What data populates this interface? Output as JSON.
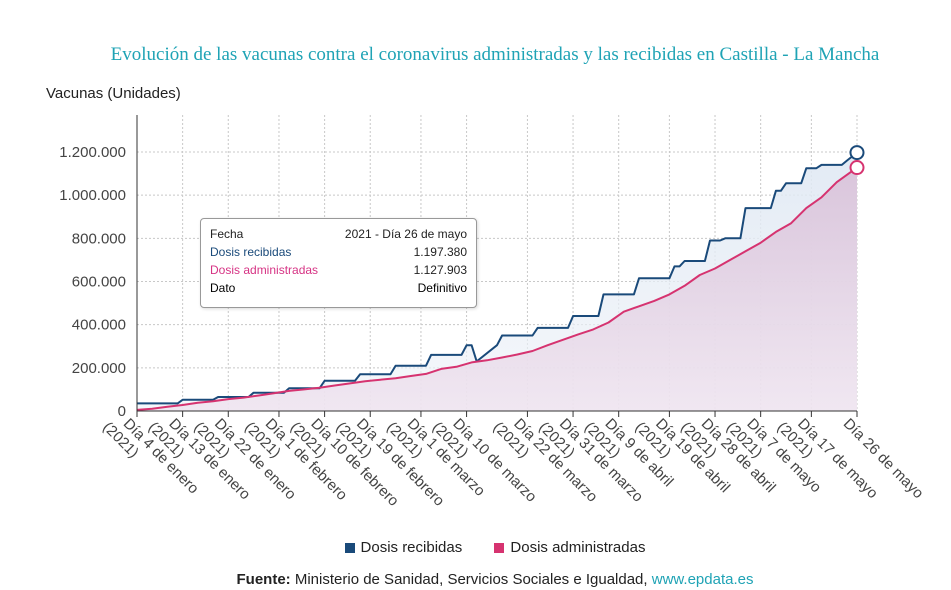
{
  "chart_data": {
    "type": "line",
    "title": "Evolución de las vacunas contra el coronavirus administradas y las recibidas en Castilla - La Mancha",
    "ylabel": "Vacunas (Unidades)",
    "xlabel": "",
    "ylim": [
      0,
      1300000
    ],
    "yticks": [
      {
        "value": 0,
        "label": "0"
      },
      {
        "value": 200000,
        "label": "200.000"
      },
      {
        "value": 400000,
        "label": "400.000"
      },
      {
        "value": 600000,
        "label": "600.000"
      },
      {
        "value": 800000,
        "label": "800.000"
      },
      {
        "value": 1000000,
        "label": "1.000.000"
      },
      {
        "value": 1200000,
        "label": "1.200.000"
      }
    ],
    "xrange": [
      0,
      142
    ],
    "xticks": [
      {
        "day": 0,
        "label": "Día 4 de enero",
        "sub": "(2021)"
      },
      {
        "day": 9,
        "label": "Día 13 de enero",
        "sub": "(2021)"
      },
      {
        "day": 18,
        "label": "Día 22 de enero",
        "sub": "(2021)"
      },
      {
        "day": 28,
        "label": "Día 1 de febrero",
        "sub": "(2021)"
      },
      {
        "day": 37,
        "label": "Día 10 de febrero",
        "sub": "(2021)"
      },
      {
        "day": 46,
        "label": "Día 19 de febrero",
        "sub": "(2021)"
      },
      {
        "day": 56,
        "label": "Día 1 de marzo",
        "sub": "(2021)"
      },
      {
        "day": 65,
        "label": "Día 10 de marzo",
        "sub": "(2021)"
      },
      {
        "day": 77,
        "label": "Día 22 de marzo",
        "sub": "(2021)"
      },
      {
        "day": 86,
        "label": "Día 31 de marzo",
        "sub": "(2021)"
      },
      {
        "day": 95,
        "label": "Día 9 de abril",
        "sub": "(2021)"
      },
      {
        "day": 105,
        "label": "Día 19 de abril",
        "sub": "(2021)"
      },
      {
        "day": 114,
        "label": "Día 28 de abril",
        "sub": "(2021)"
      },
      {
        "day": 123,
        "label": "Día 7 de mayo",
        "sub": "(2021)"
      },
      {
        "day": 133,
        "label": "Día 17 de mayo",
        "sub": "(2021)"
      },
      {
        "day": 142,
        "label": "Día 26 de mayo",
        "sub": ""
      }
    ],
    "series": [
      {
        "name": "Dosis recibidas",
        "color": "#1a4a7a",
        "step": true,
        "points": [
          [
            0,
            35000
          ],
          [
            8,
            35000
          ],
          [
            9,
            52000
          ],
          [
            15,
            52000
          ],
          [
            16,
            65000
          ],
          [
            22,
            65000
          ],
          [
            23,
            85000
          ],
          [
            29,
            85000
          ],
          [
            30,
            105000
          ],
          [
            36,
            105000
          ],
          [
            37,
            140000
          ],
          [
            43,
            140000
          ],
          [
            44,
            170000
          ],
          [
            50,
            170000
          ],
          [
            51,
            210000
          ],
          [
            57,
            210000
          ],
          [
            58,
            260000
          ],
          [
            64,
            260000
          ],
          [
            65,
            305000
          ],
          [
            66,
            305000
          ],
          [
            67,
            230000
          ],
          [
            71,
            305000
          ],
          [
            72,
            350000
          ],
          [
            78,
            350000
          ],
          [
            79,
            385000
          ],
          [
            85,
            385000
          ],
          [
            86,
            440000
          ],
          [
            91,
            440000
          ],
          [
            92,
            540000
          ],
          [
            98,
            540000
          ],
          [
            99,
            615000
          ],
          [
            105,
            615000
          ],
          [
            106,
            670000
          ],
          [
            107,
            670000
          ],
          [
            108,
            695000
          ],
          [
            112,
            695000
          ],
          [
            113,
            790000
          ],
          [
            115,
            790000
          ],
          [
            116,
            800000
          ],
          [
            119,
            800000
          ],
          [
            120,
            940000
          ],
          [
            125,
            940000
          ],
          [
            126,
            1020000
          ],
          [
            127,
            1020000
          ],
          [
            128,
            1055000
          ],
          [
            131,
            1055000
          ],
          [
            132,
            1125000
          ],
          [
            134,
            1125000
          ],
          [
            135,
            1140000
          ],
          [
            139,
            1140000
          ],
          [
            140,
            1160000
          ],
          [
            142,
            1197380
          ]
        ]
      },
      {
        "name": "Dosis administradas",
        "color": "#d63370",
        "step": false,
        "points": [
          [
            0,
            5000
          ],
          [
            3,
            10000
          ],
          [
            6,
            20000
          ],
          [
            9,
            28000
          ],
          [
            12,
            38000
          ],
          [
            15,
            45000
          ],
          [
            18,
            55000
          ],
          [
            21,
            62000
          ],
          [
            24,
            72000
          ],
          [
            27,
            82000
          ],
          [
            30,
            93000
          ],
          [
            33,
            100000
          ],
          [
            36,
            108000
          ],
          [
            39,
            118000
          ],
          [
            42,
            128000
          ],
          [
            45,
            138000
          ],
          [
            48,
            145000
          ],
          [
            51,
            152000
          ],
          [
            54,
            162000
          ],
          [
            57,
            172000
          ],
          [
            60,
            195000
          ],
          [
            63,
            205000
          ],
          [
            66,
            225000
          ],
          [
            69,
            235000
          ],
          [
            72,
            248000
          ],
          [
            75,
            262000
          ],
          [
            78,
            278000
          ],
          [
            81,
            305000
          ],
          [
            84,
            330000
          ],
          [
            87,
            355000
          ],
          [
            90,
            378000
          ],
          [
            93,
            410000
          ],
          [
            96,
            460000
          ],
          [
            99,
            485000
          ],
          [
            102,
            510000
          ],
          [
            105,
            540000
          ],
          [
            108,
            580000
          ],
          [
            111,
            630000
          ],
          [
            114,
            660000
          ],
          [
            117,
            700000
          ],
          [
            120,
            740000
          ],
          [
            123,
            780000
          ],
          [
            126,
            830000
          ],
          [
            129,
            870000
          ],
          [
            132,
            940000
          ],
          [
            135,
            990000
          ],
          [
            138,
            1060000
          ],
          [
            142,
            1127903
          ]
        ]
      }
    ],
    "end_markers": [
      {
        "series": "Dosis recibidas",
        "day": 142,
        "value": 1197380
      },
      {
        "series": "Dosis administradas",
        "day": 142,
        "value": 1127903
      }
    ],
    "legend": [
      {
        "label": "Dosis recibidas",
        "color": "#1a4a7a"
      },
      {
        "label": "Dosis administradas",
        "color": "#d63370"
      }
    ],
    "legend_position": "bottom-center"
  },
  "tooltip": {
    "rows": [
      {
        "key": "Fecha",
        "value": "2021 - Día 26 de mayo"
      },
      {
        "key": "Dosis recibidas",
        "value": "1.197.380"
      },
      {
        "key": "Dosis administradas",
        "value": "1.127.903"
      },
      {
        "key": "Dato",
        "value": "Definitivo"
      }
    ]
  },
  "source": {
    "label": "Fuente:",
    "text": "Ministerio de Sanidad, Servicios Sociales e Igualdad,",
    "link": "www.epdata.es"
  }
}
